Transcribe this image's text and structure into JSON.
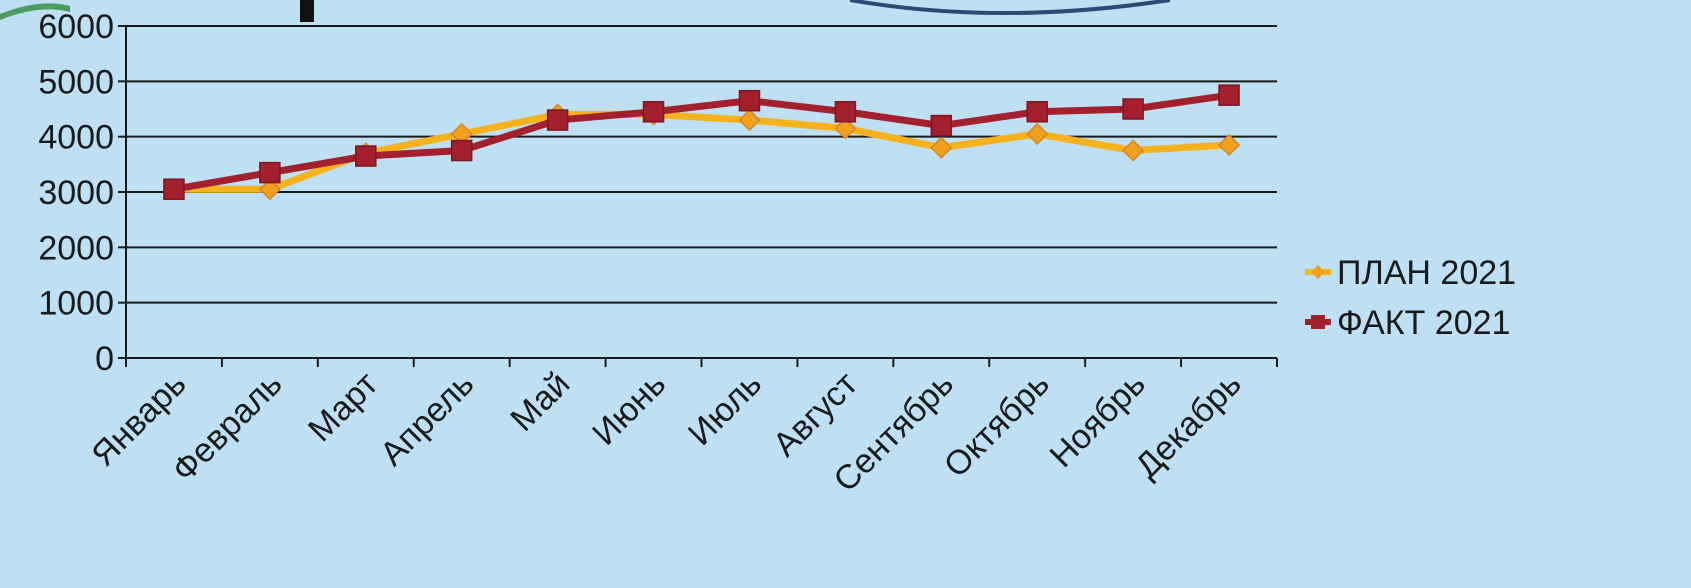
{
  "colors": {
    "background": "#bfe0f2",
    "grid": "#1a1a1a",
    "plan_line": "#f5b21c",
    "plan_marker": "#f0a020",
    "fact_line": "#a3202e",
    "fact_marker": "#a3202e"
  },
  "chart_data": {
    "type": "line",
    "categories": [
      "Январь",
      "Февраль",
      "Март",
      "Апрель",
      "Май",
      "Июнь",
      "Июль",
      "Август",
      "Сентябрь",
      "Октябрь",
      "Ноябрь",
      "Декабрь"
    ],
    "series": [
      {
        "name": "ПЛАН 2021",
        "values": [
          3050,
          3050,
          3700,
          4050,
          4400,
          4400,
          4300,
          4150,
          3800,
          4050,
          3750,
          3850
        ]
      },
      {
        "name": "ФАКТ 2021",
        "values": [
          3050,
          3350,
          3650,
          3750,
          4300,
          4450,
          4650,
          4450,
          4200,
          4450,
          4500,
          4750
        ]
      }
    ],
    "y_ticks": [
      "0",
      "1000",
      "2000",
      "3000",
      "4000",
      "5000",
      "6000"
    ],
    "ylim": [
      0,
      6000
    ],
    "grid": true,
    "legend_position": "right",
    "title": "",
    "xlabel": "",
    "ylabel": ""
  }
}
